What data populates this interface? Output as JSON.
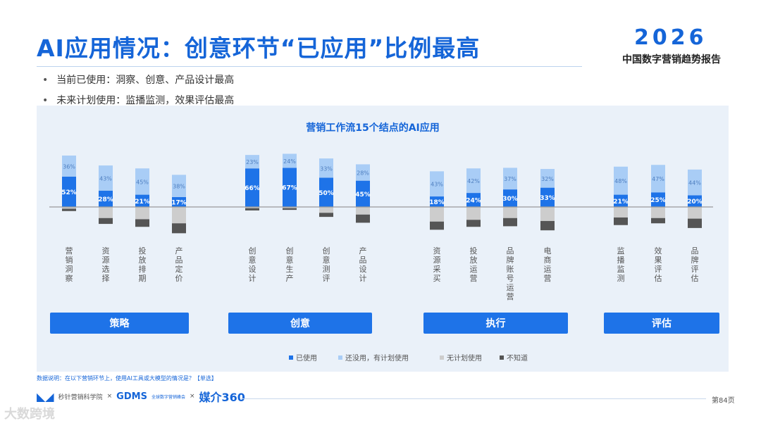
{
  "header": {
    "title": "AI应用情况：创意环节“已应用”比例最高",
    "logo": "2026",
    "report_name": "中国数字营销趋势报告"
  },
  "bullets": [
    "当前已使用：洞察、创意、产品设计最高",
    "未来计划使用：监播监测，效果评估最高"
  ],
  "chart_data": {
    "type": "bar",
    "stacked": "diverging",
    "title": "营销工作流15个结点的AI应用",
    "categories": [
      "营销洞察",
      "资源选择",
      "投放排期",
      "产品定价",
      "创意设计",
      "创意生产",
      "创意测评",
      "产品设计",
      "资源采买",
      "投放运营",
      "品牌账号运营",
      "电商运营",
      "监播监测",
      "效果评估",
      "品牌评估"
    ],
    "groups": [
      {
        "name": "策略",
        "members": [
          "营销洞察",
          "资源选择",
          "投放排期",
          "产品定价"
        ]
      },
      {
        "name": "创意",
        "members": [
          "创意设计",
          "创意生产",
          "创意测评",
          "产品设计"
        ]
      },
      {
        "name": "执行",
        "members": [
          "资源采买",
          "投放运营",
          "品牌账号运营",
          "电商运营"
        ]
      },
      {
        "name": "评估",
        "members": [
          "监播监测",
          "效果评估",
          "品牌评估"
        ]
      }
    ],
    "series": [
      {
        "name": "已使用",
        "color": "#1e73e8",
        "direction": "up",
        "values": [
          52,
          28,
          21,
          17,
          66,
          67,
          50,
          45,
          18,
          24,
          30,
          33,
          21,
          25,
          20
        ]
      },
      {
        "name": "还没用，有计划使用",
        "color": "#a9cdf6",
        "direction": "up",
        "values": [
          36,
          43,
          45,
          38,
          23,
          24,
          33,
          28,
          43,
          42,
          37,
          32,
          48,
          47,
          44
        ]
      },
      {
        "name": "无计划使用",
        "color": "#cdcdcd",
        "direction": "down",
        "values": [
          3,
          19,
          21,
          28,
          2,
          2,
          10,
          13,
          25,
          22,
          19,
          24,
          18,
          19,
          20
        ]
      },
      {
        "name": "不知道",
        "color": "#555555",
        "direction": "down",
        "values": [
          4,
          10,
          13,
          17,
          4,
          3,
          7,
          14,
          14,
          12,
          14,
          16,
          13,
          9,
          16
        ]
      }
    ],
    "legend_position": "bottom"
  },
  "footer": {
    "note": "数据说明：在以下营销环节上，使用AI工具或大模型的情况是？【单选】",
    "partners": [
      "秒针营销科学院",
      "GDMS",
      "媒介360"
    ],
    "partner_separator": "×",
    "gdms_sub": "全球数字营销峰会",
    "page": "第84页",
    "watermark": "大数跨境"
  }
}
